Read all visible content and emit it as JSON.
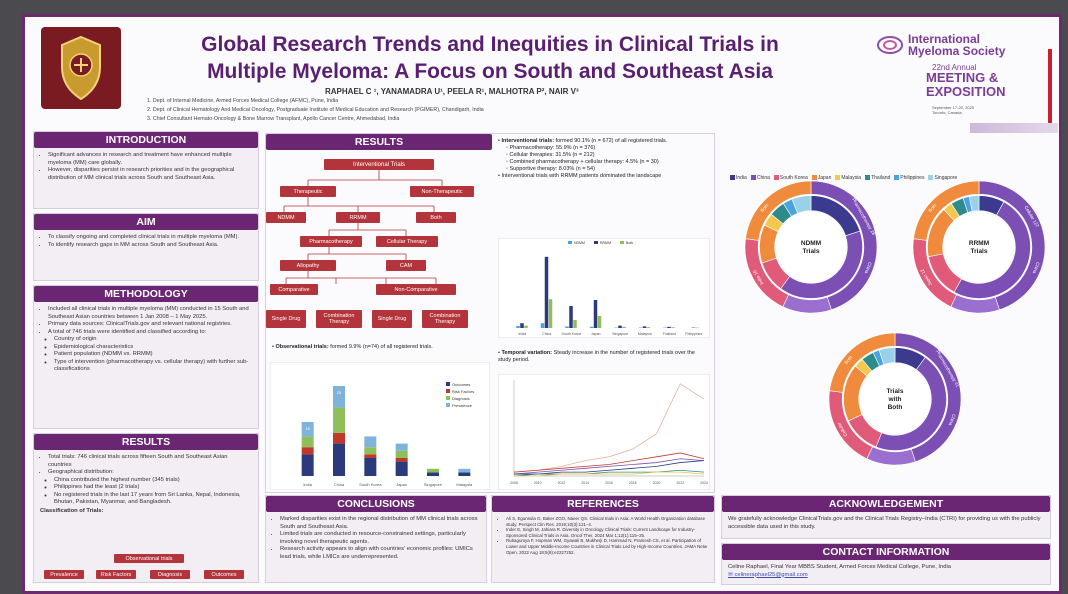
{
  "header": {
    "title_line1": "Global Research Trends and Inequities in Clinical Trials in",
    "title_line2": "Multiple Myeloma: A Focus on South and Southeast Asia",
    "authors": "RAPHAEL C ¹, YANAMADRA U¹, PEELA R¹, MALHOTRA P², NAIR V³",
    "affiliations": [
      "1. Dept. of Internal Medicine, Armed Forces Medical College (AFMC), Pune, India",
      "2. Dept. of Clinical Hematology And Medical Oncology, Postgraduate Institute of Medical Education and Research (PGIMER), Chandigarh, India",
      "3. Chief Consultant Hemato-Oncology & Bone Marrow Transplant, Apollo Cancer Centre, Ahmedabad, India"
    ]
  },
  "conference": {
    "org_line1": "International",
    "org_line2": "Myeloma Society",
    "annual": "22nd Annual",
    "meeting": "MEETING &",
    "exposition": "EXPOSITION",
    "dates": "September 17-20, 2025",
    "city": "Toronto, Canada"
  },
  "introduction": {
    "heading": "INTRODUCTION",
    "bullets": [
      "Significant advances in research and treatment have enhanced multiple myeloma (MM) care globally.",
      "However, disparities persist in research priorities and in the geographical distribution of MM clinical trials across South and Southeast Asia."
    ]
  },
  "aim": {
    "heading": "AIM",
    "bullets": [
      "To classify ongoing and completed clinical trials in multiple myeloma (MM).",
      "To identify research gaps in MM across South and Southeast Asia."
    ]
  },
  "methodology": {
    "heading": "METHODOLOGY",
    "bullets": [
      "Included all clinical trials in multiple myeloma (MM) conducted in 15 South and Southeast Asian countries between 1 Jan 2008 – 1 May 2025.",
      "Primary data sources: ClinicalTrials.gov and relevant national registries.",
      "A total of 746 trials were identified and classified according to:"
    ],
    "sub": [
      "Country of origin",
      "Epidemiological characteristics",
      "Patient population (NDMM vs. RRMM)",
      "Type of intervention (pharmacotherapy vs. cellular therapy) with further sub-classifications"
    ]
  },
  "results_left": {
    "heading": "RESULTS",
    "bullets": [
      "Total trials: 746 clinical trials across fifteen South and Southeast Asian countries",
      "Geographical distribution:"
    ],
    "geo": [
      "China contributed the highest number (345 trials)",
      "Philippines had the least (2 trials)",
      "No registered trials in the last 17 years from Sri Lanka, Nepal, Indonesia, Bhutan, Pakistan, Myanmar, and Bangladesh."
    ],
    "classification_label": "Classification of Trials:",
    "obs_box": "Observational trials",
    "obs_children": [
      "Prevalence",
      "Risk Factors",
      "Diagnosis",
      "Outcomes"
    ]
  },
  "results_mid": {
    "heading": "RESULTS",
    "flow": {
      "root": "Interventional Trials",
      "therapeutic": "Therapeutic",
      "nontherapeutic": "Non-Therapeutic",
      "ndmm": "NDMM",
      "rrmm": "RRMM",
      "both": "Both",
      "pharma": "Pharmacotherapy",
      "cellular": "Cellular Therapy",
      "allopathy": "Allopathy",
      "cam": "CAM",
      "comparative": "Comparative",
      "noncomparative": "Non-Comparative",
      "single1": "Single Drug",
      "combo1": "Combination Therapy",
      "single2": "Single Drug",
      "combo2": "Combination Therapy"
    },
    "obs_label": "Observational trials:",
    "obs_text": "formed 9.9% (n=74) of all registered trials.",
    "interv_label": "Interventional trials:",
    "interv_text": "formed 90.1% (n = 672) of all registered trials.",
    "interv_sub": [
      "Pharmacotherapy: 55.9% (n = 376)",
      "Cellular therapies: 31.5% (n = 212)",
      "Combined pharmacotherapy + cellular therapy: 4.5% (n = 30)",
      "Supportive therapy: 8.03% (n = 54)"
    ],
    "interv_note": "Interventional trials with RRMM patients dominated the landscape",
    "temporal_label": "Temporal variation:",
    "temporal_text": "Steady increase in the number of registered trials over the study period."
  },
  "donut": {
    "legend": [
      {
        "name": "India",
        "color": "#3c3a8f"
      },
      {
        "name": "China",
        "color": "#7b4fb3"
      },
      {
        "name": "South Korea",
        "color": "#e05a7a"
      },
      {
        "name": "Japan",
        "color": "#f08a3c"
      },
      {
        "name": "Malaysia",
        "color": "#f2c94c"
      },
      {
        "name": "Thailand",
        "color": "#2e8b8b"
      },
      {
        "name": "Philippines",
        "color": "#4aa3df"
      },
      {
        "name": "Singapore",
        "color": "#9ad0e8"
      }
    ],
    "ndmm_center": [
      "NDMM",
      "Trials"
    ],
    "rrmm_center": [
      "RRMM",
      "Trials"
    ],
    "both_center": [
      "Trials",
      "with",
      "Both"
    ],
    "outer_labels": {
      "ndmm": [
        "Pharmacotherapy 28",
        "China",
        "India 10",
        "Both"
      ],
      "rrmm": [
        "Cellular 127",
        "China",
        "Japan 12",
        "Both"
      ],
      "both": [
        "Pharmacotherapy 41",
        "China",
        "Cellular",
        "Both"
      ]
    }
  },
  "chart_data": [
    {
      "type": "bar",
      "title": "Observational trials by country",
      "categories": [
        "India",
        "China",
        "South Korea",
        "Japan",
        "Singapore",
        "Malaysia"
      ],
      "series": [
        {
          "name": "Outcomes",
          "values": [
            6,
            9,
            5,
            4,
            1,
            1
          ]
        },
        {
          "name": "Risk Factors",
          "values": [
            2,
            3,
            1,
            1,
            0,
            0
          ]
        },
        {
          "name": "Diagnosis",
          "values": [
            3,
            7,
            2,
            2,
            1,
            0
          ]
        },
        {
          "name": "Prevalence",
          "values": [
            4,
            6,
            3,
            2,
            0,
            1
          ]
        }
      ],
      "labels": [
        "15",
        "25",
        "",
        "",
        "",
        ""
      ],
      "ylim": [
        0,
        30
      ]
    },
    {
      "type": "bar",
      "title": "Interventional trials by population",
      "categories": [
        "India",
        "China",
        "South Korea",
        "Japan",
        "Singapore",
        "Malaysia",
        "Thailand",
        "Philippines"
      ],
      "series": [
        {
          "name": "NDMM",
          "values": [
            5,
            12,
            4,
            3,
            1,
            1,
            1,
            0
          ]
        },
        {
          "name": "RRMM",
          "values": [
            12,
            178,
            55,
            70,
            6,
            4,
            3,
            1
          ]
        },
        {
          "name": "Both",
          "values": [
            6,
            72,
            20,
            30,
            3,
            2,
            2,
            1
          ]
        }
      ],
      "ylim": [
        0,
        200
      ]
    },
    {
      "type": "line",
      "title": "Temporal variation",
      "x": [
        2008,
        2010,
        2012,
        2014,
        2016,
        2018,
        2020,
        2022,
        2024
      ],
      "series": [
        {
          "name": "China",
          "values": [
            2,
            3,
            5,
            8,
            10,
            14,
            22,
            48,
            40
          ]
        },
        {
          "name": "Japan",
          "values": [
            2,
            3,
            4,
            5,
            6,
            8,
            10,
            12,
            9
          ]
        },
        {
          "name": "South Korea",
          "values": [
            1,
            2,
            3,
            4,
            5,
            6,
            7,
            9,
            8
          ]
        },
        {
          "name": "India",
          "values": [
            1,
            1,
            2,
            2,
            3,
            4,
            5,
            7,
            8
          ]
        },
        {
          "name": "Singapore",
          "values": [
            0,
            1,
            1,
            1,
            2,
            2,
            2,
            3,
            2
          ]
        },
        {
          "name": "Malaysia",
          "values": [
            0,
            0,
            1,
            1,
            1,
            1,
            2,
            2,
            1
          ]
        }
      ],
      "ylim": [
        0,
        50
      ]
    }
  ],
  "conclusions": {
    "heading": "CONCLUSIONS",
    "bullets": [
      "Marked disparities exist in the regional distribution of MM clinical trials across South and Southeast Asia.",
      "Limited trials are conducted in resource-constrained settings, particularly involving novel therapeutic agents.",
      "Research activity appears to align with countries' economic profiles: UMICs lead trials, while LMICs are underrepresented."
    ]
  },
  "references": {
    "heading": "REFERENCES",
    "items": [
      "Ali S, Egunsola O, Baker ZGO, Naeer QS. Clinical trials in Asia: A World Health Organization database study. Perspect Clin Res. 2019;10(3):121–4.",
      "Inder E, Singh M, Jahiara R. Diversity in Oncology Clinical Trials: Current Landscape for Industry-Sponsored Clinical Trials in Asia. Oncol Ther. 2024 Mar 1;12(1):115–25.",
      "Rubagumya F, Hopman WM, Gyawali B, Mukherji D, Hammad N, Pramesh CS, et al. Participation of Lower and Upper Middle-Income Countries in Clinical Trials Led by High-Income Countries. JAMA Netw Open. 2022 Aug 18;5(8):e2227252."
    ]
  },
  "acknowledgement": {
    "heading": "ACKNOWLEDGEMENT",
    "text": "We gratefully acknowledge ClinicalTrials.gov and the Clinical Trials Registry–India (CTRI) for providing us with the publicly accessible data used in this study."
  },
  "contact": {
    "heading": "CONTACT INFORMATION",
    "line1": "Celine Raphael, Final Year MBBS Student, Armed Forces Medical College, Pune, India",
    "line2": "✉ celineraphael25@gmail.com"
  }
}
